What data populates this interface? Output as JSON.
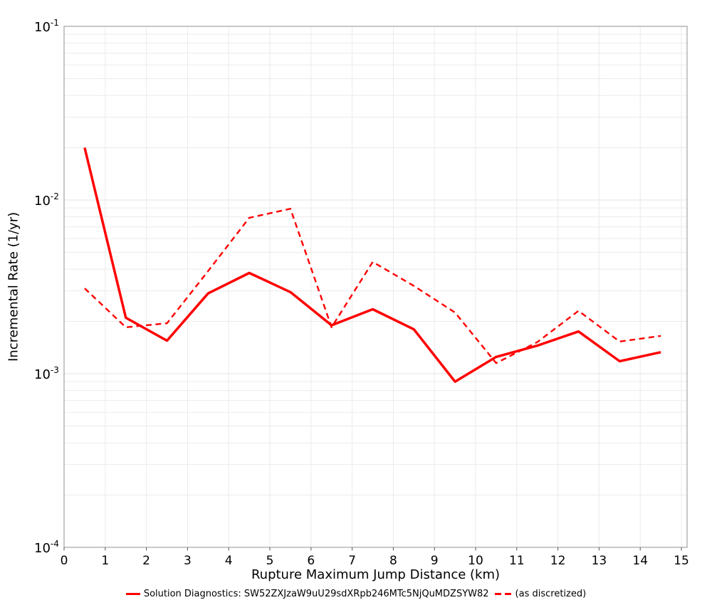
{
  "chart_data": {
    "type": "line",
    "title": "",
    "xlabel": "Rupture Maximum Jump Distance (km)",
    "ylabel": "Incremental Rate (1/yr)",
    "y_scale": "log",
    "xlim": [
      0,
      15.15
    ],
    "ylim": [
      0.0001,
      0.1
    ],
    "grid": true,
    "legend_position": "bottom",
    "x_ticks": [
      "0",
      "1",
      "2",
      "3",
      "4",
      "5",
      "6",
      "7",
      "8",
      "9",
      "10",
      "11",
      "12",
      "13",
      "14",
      "15"
    ],
    "y_ticks": [
      {
        "base": "10",
        "exp": "-1"
      },
      {
        "base": "10",
        "exp": "-2"
      },
      {
        "base": "10",
        "exp": "-3"
      },
      {
        "base": "10",
        "exp": "-4"
      }
    ],
    "x": [
      0.5,
      1.5,
      2.5,
      3.5,
      4.5,
      5.5,
      6.5,
      7.5,
      8.5,
      9.5,
      10.5,
      11.5,
      12.5,
      13.5,
      14.5
    ],
    "series": [
      {
        "name": "Solution Diagnostics: SW52ZXJzaW9uU29sdXRpb246MTc5NjQuMDZSYW82",
        "style": "solid",
        "color": "#ff0000",
        "values": [
          0.02,
          0.0021,
          0.00155,
          0.0029,
          0.0038,
          0.00295,
          0.0019,
          0.00235,
          0.0018,
          0.0009,
          0.00125,
          0.00145,
          0.00175,
          0.00118,
          0.00133
        ]
      },
      {
        "name": "(as discretized)",
        "style": "dashed",
        "color": "#ff0000",
        "values": [
          0.0031,
          0.00185,
          0.00195,
          0.0039,
          0.0079,
          0.0089,
          0.00185,
          0.0044,
          0.0032,
          0.00225,
          0.00115,
          0.00152,
          0.0023,
          0.00153,
          0.00165
        ]
      }
    ],
    "colors": {
      "line": "#ff0000",
      "grid_minor": "#ebebeb",
      "grid_major": "#e3e3e3",
      "plot_border": "#aaaaaa",
      "tick": "#555555",
      "text": "#000000"
    }
  }
}
